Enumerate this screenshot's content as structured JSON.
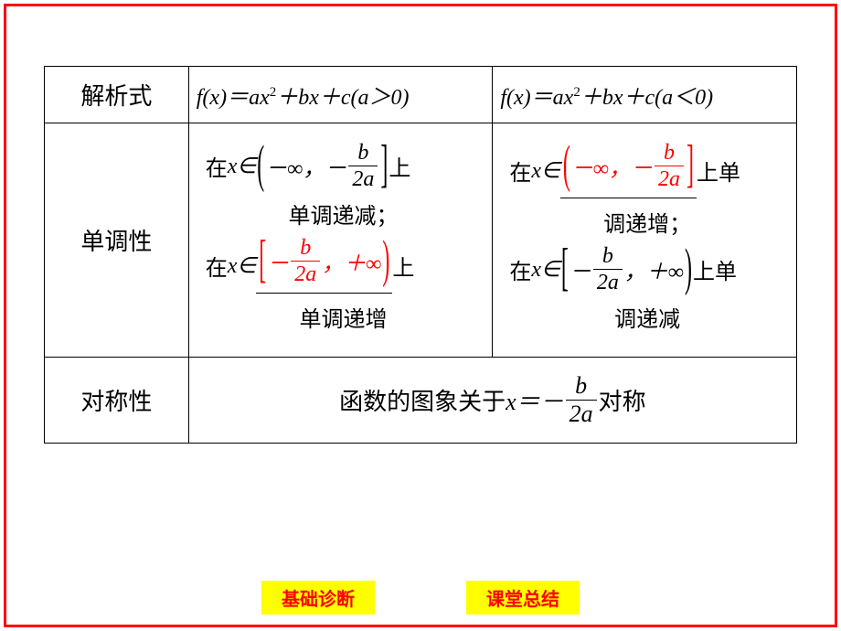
{
  "colors": {
    "frame": "#ff0000",
    "accent": "#ff0000",
    "btn_bg": "#ffff00",
    "btn_fg": "#ff0000",
    "border": "#000000",
    "bg": "#ffffff"
  },
  "table": {
    "row1": {
      "label": "解析式",
      "col2_formula": "f(x)＝ax²＋bx＋c(a＞0)",
      "col3_formula": "f(x)＝ax²＋bx＋c(a＜0)"
    },
    "row2": {
      "label": "单调性",
      "col2": {
        "line1_prefix": "在 ",
        "line1_var": "x∈",
        "line1_lb": "(",
        "line1_left": "－∞，",
        "line1_neg": "－",
        "line1_frac_num": "b",
        "line1_frac_den": "2a",
        "line1_rb": "]",
        "line1_suffix": "上",
        "mid1": "单调递减；",
        "line2_prefix": "在 ",
        "line2_var": "x∈",
        "line2_lb": "[",
        "line2_neg": "－",
        "line2_frac_num": "b",
        "line2_frac_den": "2a",
        "line2_right": "，＋∞",
        "line2_rb": ")",
        "line2_suffix": "上",
        "mid2": "单调递增"
      },
      "col3": {
        "line1_prefix": "在 ",
        "line1_var": "x∈",
        "line1_lb": "(",
        "line1_left": "－∞，",
        "line1_neg": "－",
        "line1_frac_num": "b",
        "line1_frac_den": "2a",
        "line1_rb": "]",
        "line1_suffix": " 上单",
        "mid1": "调递增；",
        "line2_prefix": "在 ",
        "line2_var": "x∈",
        "line2_lb": "[",
        "line2_neg": "－",
        "line2_frac_num": "b",
        "line2_frac_den": "2a",
        "line2_right": "，＋∞",
        "line2_rb": ")",
        "line2_suffix": "上单",
        "mid2": "调递减"
      }
    },
    "row3": {
      "label": "对称性",
      "text_before": "函数的图象关于",
      "var": "x＝－",
      "frac_num": "b",
      "frac_den": "2a",
      "text_after": "对称"
    }
  },
  "buttons": {
    "left": "基础诊断",
    "right": "课堂总结"
  }
}
